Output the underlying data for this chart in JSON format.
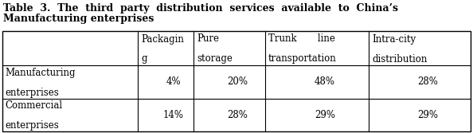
{
  "title_line1": "Table  3.  The  third  party  distribution  services  available  to  China’s",
  "title_line2": "Manufacturing enterprises",
  "col_headers_line1": [
    "",
    "Packagin",
    "Pure",
    "Trunk       line",
    "Intra-city"
  ],
  "col_headers_line2": [
    "",
    "g",
    "storage",
    "transportation",
    "distribution"
  ],
  "row_labels": [
    [
      "Manufacturing",
      "enterprises"
    ],
    [
      "Commercial",
      "enterprises"
    ]
  ],
  "data": [
    [
      "4%",
      "20%",
      "48%",
      "28%"
    ],
    [
      "14%",
      "28%",
      "29%",
      "29%"
    ]
  ],
  "background_color": "#ffffff",
  "border_color": "#000000",
  "font_size": 8.5,
  "title_font_size": 9.0
}
